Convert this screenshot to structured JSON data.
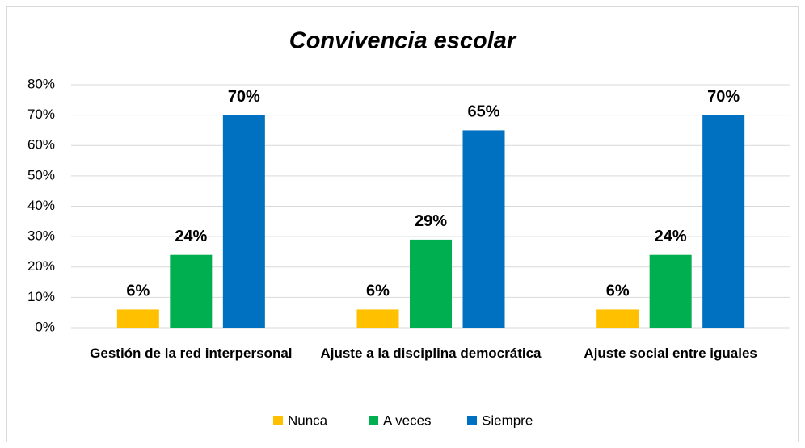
{
  "chart_data": {
    "type": "bar",
    "title": "Convivencia escolar",
    "categories": [
      "Gestión de la red interpersonal",
      "Ajuste a la disciplina democrática",
      "Ajuste social entre iguales"
    ],
    "series": [
      {
        "name": "Nunca",
        "color": "#FFC000",
        "values": [
          6,
          6,
          6
        ],
        "value_labels": [
          "6%",
          "6%",
          "6%"
        ]
      },
      {
        "name": "A veces",
        "color": "#00B050",
        "values": [
          24,
          29,
          24
        ],
        "value_labels": [
          "24%",
          "29%",
          "24%"
        ]
      },
      {
        "name": "Siempre",
        "color": "#0070C0",
        "values": [
          70,
          65,
          70
        ],
        "value_labels": [
          "70%",
          "65%",
          "70%"
        ]
      }
    ],
    "ylim": [
      0,
      80
    ],
    "yticks": [
      {
        "value": 0,
        "label": "0%"
      },
      {
        "value": 10,
        "label": "10%"
      },
      {
        "value": 20,
        "label": "20%"
      },
      {
        "value": 30,
        "label": "30%"
      },
      {
        "value": 40,
        "label": "40%"
      },
      {
        "value": 50,
        "label": "50%"
      },
      {
        "value": 60,
        "label": "60%"
      },
      {
        "value": 70,
        "label": "70%"
      },
      {
        "value": 80,
        "label": "80%"
      }
    ],
    "grid": true,
    "legend": "bottom"
  }
}
